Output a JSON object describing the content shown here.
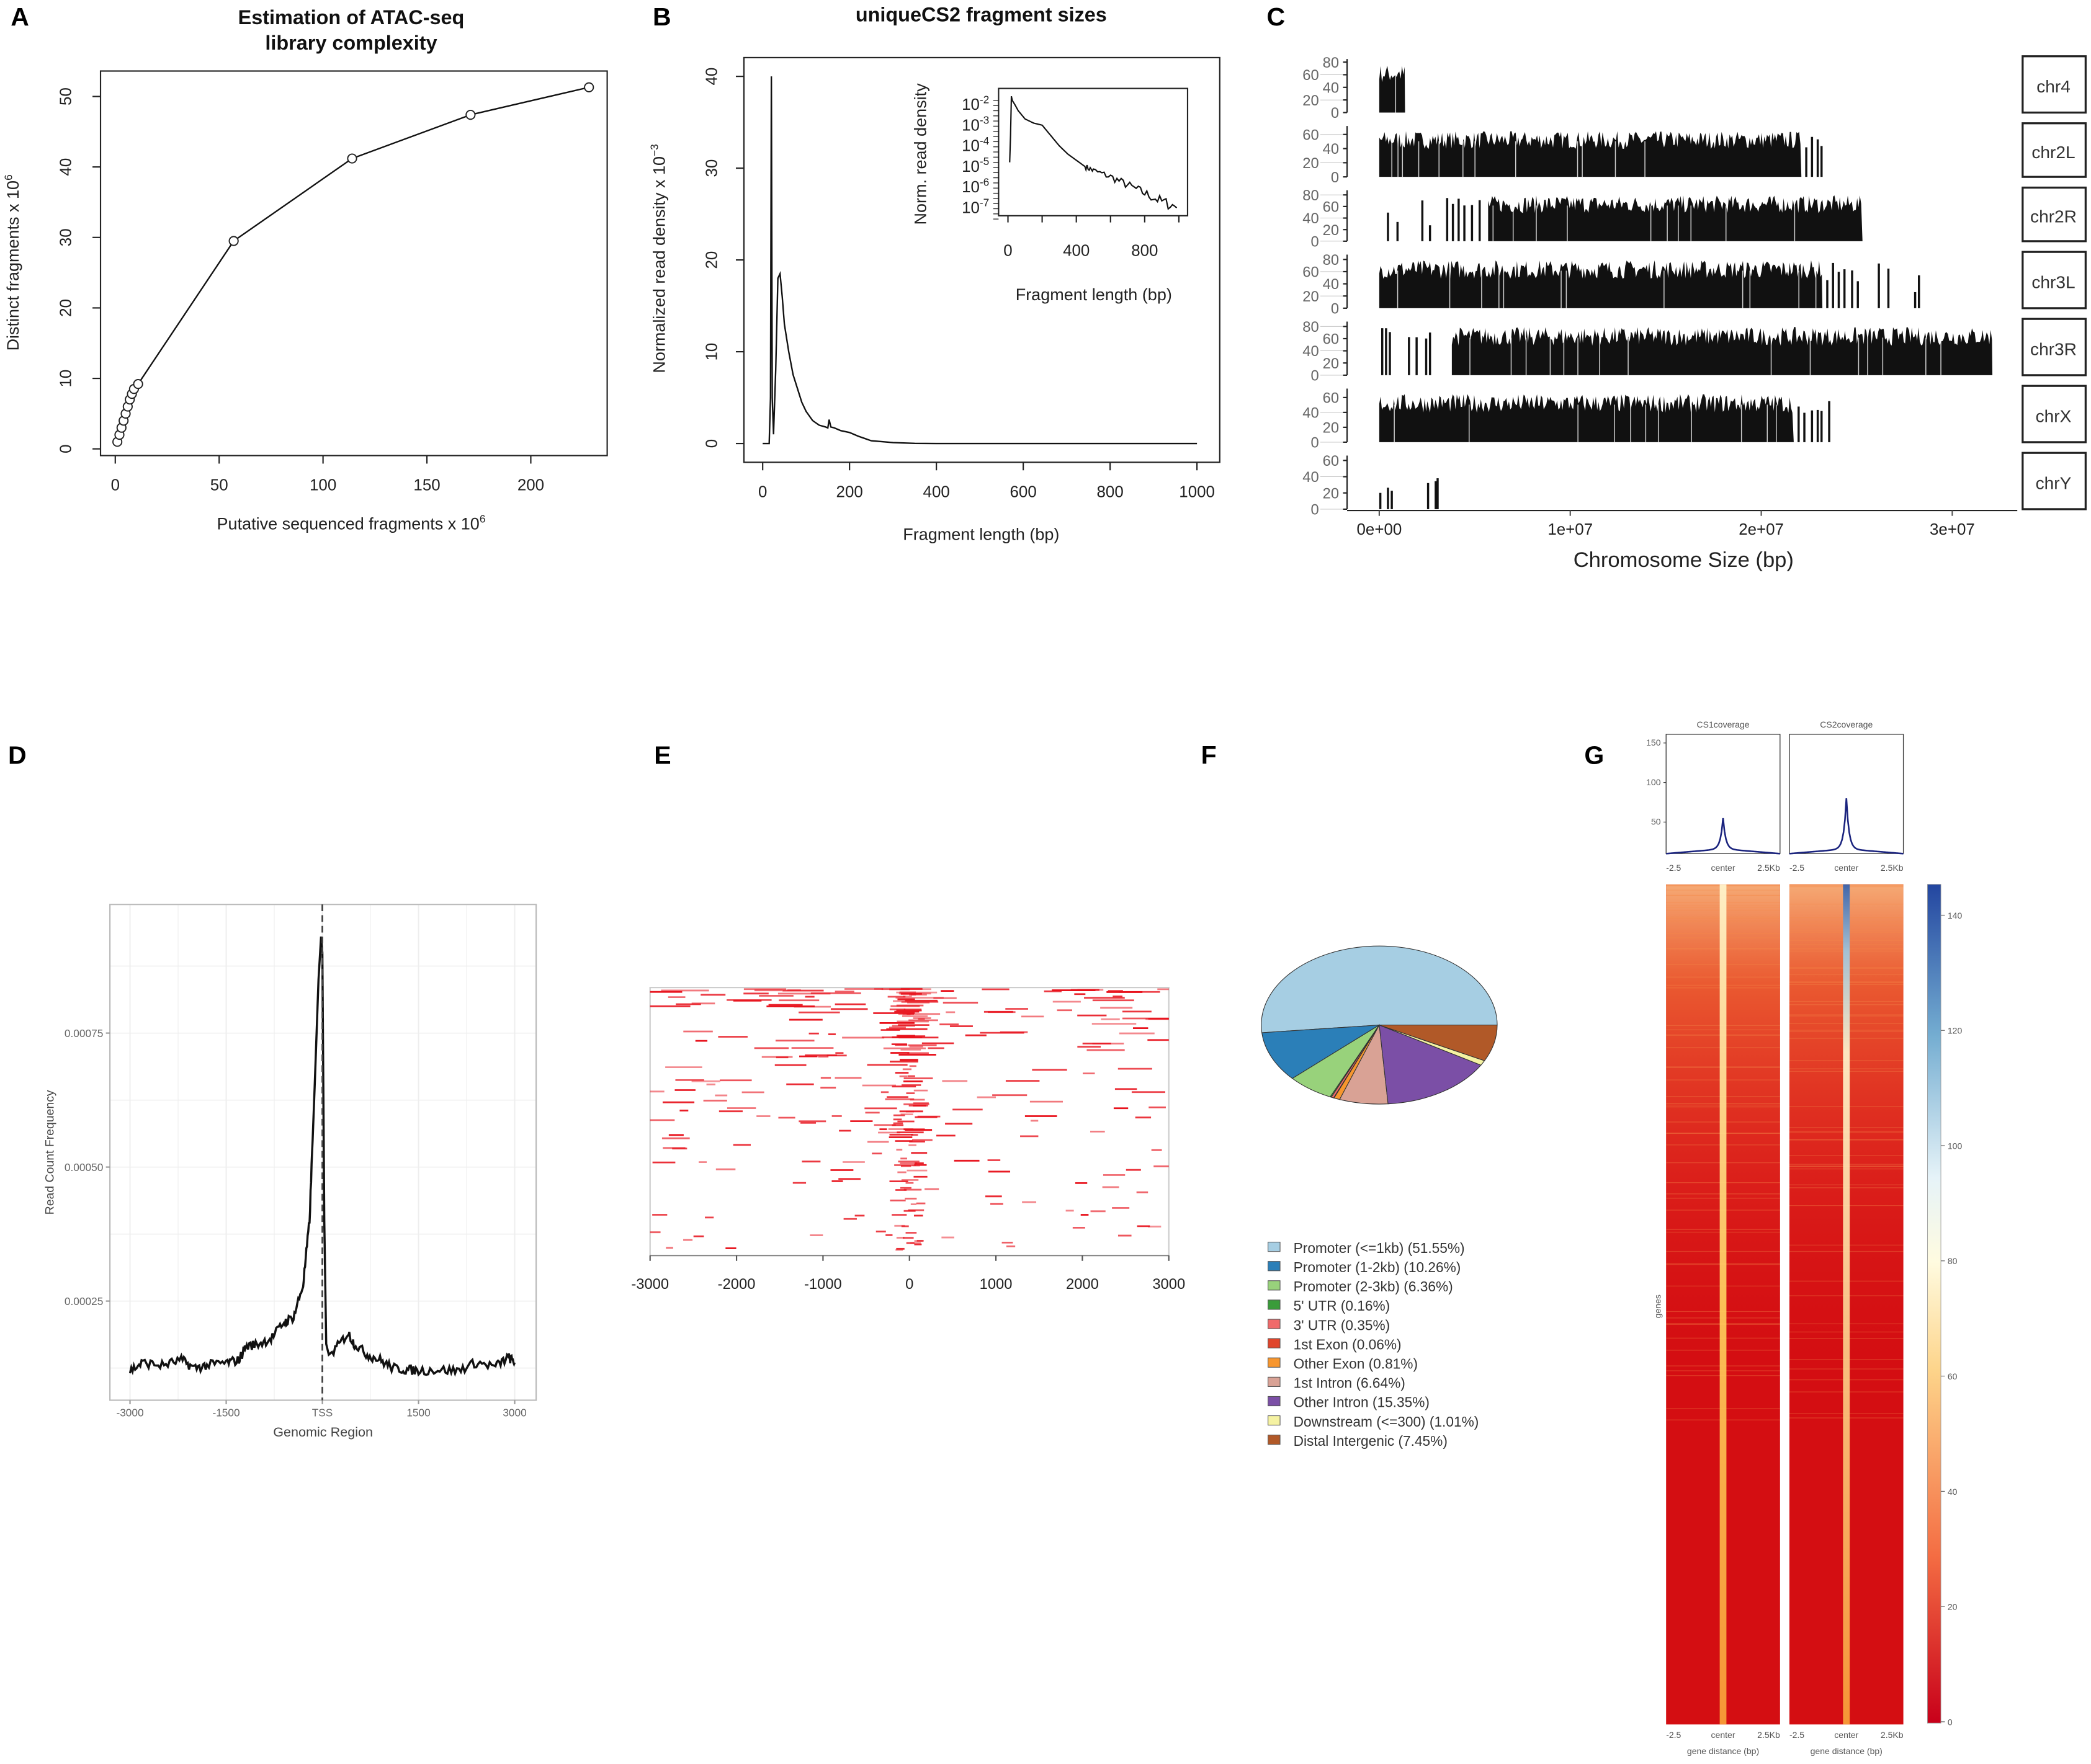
{
  "panel_labels": [
    "A",
    "B",
    "C",
    "D",
    "E",
    "F",
    "G"
  ],
  "chart_data": [
    {
      "type": "line",
      "title_line1": "Estimation of ATAC-seq",
      "title_line2": "library complexity",
      "xlabel": "Putative sequenced fragments x 10",
      "xlabel_exp": "6",
      "ylabel": "Distinct fragments x 10",
      "ylabel_exp": "6",
      "x_ticks": [
        0,
        50,
        100,
        150,
        200
      ],
      "y_ticks": [
        0,
        10,
        20,
        30,
        40,
        50
      ],
      "xlim": [
        0,
        235
      ],
      "ylim": [
        0,
        52
      ],
      "x": [
        1,
        2,
        3,
        4,
        5,
        6,
        7,
        8,
        9,
        11,
        57,
        114,
        171,
        228
      ],
      "y": [
        1,
        2,
        3,
        4,
        5,
        6,
        7,
        7.8,
        8.5,
        9.2,
        29.5,
        41.2,
        47.4,
        51.3
      ],
      "markers": "open-circle"
    },
    {
      "type": "line",
      "title": "uniqueCS2 fragment sizes",
      "xlabel": "Fragment length (bp)",
      "ylabel": "Normalized read density x 10",
      "ylabel_exp": "−3",
      "x_ticks": [
        0,
        200,
        400,
        600,
        800,
        1000
      ],
      "y_ticks": [
        0,
        10,
        20,
        30,
        40
      ],
      "xlim": [
        0,
        1000
      ],
      "ylim": [
        0,
        40
      ],
      "x": [
        0,
        15,
        18,
        20,
        22,
        25,
        30,
        35,
        40,
        45,
        50,
        55,
        60,
        70,
        80,
        90,
        100,
        115,
        130,
        145,
        150,
        153,
        157,
        165,
        180,
        200,
        220,
        250,
        300,
        350,
        400,
        1000
      ],
      "y": [
        0,
        0,
        5,
        40,
        5,
        1,
        8,
        18,
        18.5,
        16,
        13,
        11.5,
        10,
        7.5,
        6,
        4.5,
        3.5,
        2.5,
        2,
        1.8,
        1.7,
        2.6,
        1.8,
        1.7,
        1.4,
        1.2,
        0.8,
        0.3,
        0.1,
        0.02,
        0,
        0
      ],
      "inset": {
        "ylabel": "Norm. read density",
        "xlabel": "Fragment length (bp)",
        "x_ticks": [
          0,
          400,
          800
        ],
        "y_ticks": [
          {
            "base": "10",
            "exp": "-2",
            "value": -2
          },
          {
            "base": "10",
            "exp": "-3",
            "value": -3
          },
          {
            "base": "10",
            "exp": "-4",
            "value": -4
          },
          {
            "base": "10",
            "exp": "-5",
            "value": -5
          },
          {
            "base": "10",
            "exp": "-6",
            "value": -6
          },
          {
            "base": "10",
            "exp": "-7",
            "value": -7
          }
        ],
        "y_scale": "log",
        "x": [
          10,
          15,
          20,
          25,
          40,
          60,
          100,
          150,
          200,
          250,
          300,
          350,
          400,
          450,
          500,
          600,
          700,
          800,
          900,
          1000
        ],
        "log10_y": [
          -4.8,
          -3.5,
          -1.6,
          -1.8,
          -2.0,
          -2.3,
          -2.7,
          -2.9,
          -3.0,
          -3.5,
          -4.0,
          -4.4,
          -4.7,
          -5.0,
          -5.2,
          -5.5,
          -5.9,
          -6.3,
          -6.7,
          -7.0
        ]
      }
    },
    {
      "type": "bar",
      "xlabel": "Chromosome Size (bp)",
      "x_ticks": [
        "0e+00",
        "1e+07",
        "2e+07",
        "3e+07"
      ],
      "x_tick_values": [
        0,
        10,
        20,
        30
      ],
      "x_unit": "Mb",
      "chromosomes": [
        {
          "name": "chr4",
          "y_ticks": [
            0,
            20,
            40,
            60,
            80
          ],
          "ymax": 85,
          "dense": [
            [
              0,
              1.35
            ]
          ],
          "sparse": []
        },
        {
          "name": "chr2L",
          "y_ticks": [
            0,
            20,
            40,
            60
          ],
          "ymax": 72,
          "dense": [
            [
              0,
              22.1
            ]
          ],
          "sparse": [
            22.3,
            22.6,
            22.9,
            23.1
          ]
        },
        {
          "name": "chr2R",
          "y_ticks": [
            0,
            20,
            40,
            60,
            80
          ],
          "ymax": 88,
          "dense": [
            [
              5.7,
              25.3
            ]
          ],
          "sparse": [
            0.4,
            0.9,
            2.2,
            2.6,
            3.5,
            3.8,
            4.1,
            4.4,
            4.8,
            5.2
          ]
        },
        {
          "name": "chr3L",
          "y_ticks": [
            0,
            20,
            40,
            60,
            80
          ],
          "ymax": 88,
          "dense": [
            [
              0,
              23.2
            ]
          ],
          "sparse": [
            23.4,
            23.7,
            24.0,
            24.3,
            24.7,
            25.0,
            26.1,
            26.6,
            28.0,
            28.2
          ]
        },
        {
          "name": "chr3R",
          "y_ticks": [
            0,
            20,
            40,
            60,
            80
          ],
          "ymax": 88,
          "dense": [
            [
              3.8,
              32.1
            ]
          ],
          "sparse": [
            0.1,
            0.3,
            0.5,
            1.5,
            1.9,
            2.4,
            2.6
          ]
        },
        {
          "name": "chrX",
          "y_ticks": [
            0,
            20,
            40,
            60
          ],
          "ymax": 72,
          "dense": [
            [
              0,
              21.7
            ]
          ],
          "sparse": [
            21.9,
            22.2,
            22.6,
            22.9,
            23.1,
            23.5
          ]
        },
        {
          "name": "chrY",
          "y_ticks": [
            0,
            20,
            40,
            60
          ],
          "ymax": 66,
          "dense": [],
          "sparse": [
            0,
            0.4,
            0.6,
            2.5,
            2.9,
            3.0
          ]
        }
      ]
    },
    {
      "type": "line",
      "xlabel": "Genomic Region",
      "ylabel": "Read Count Frequency",
      "x_ticks": [
        "-3000",
        "-1500",
        "TSS",
        "1500",
        "3000"
      ],
      "x_tick_values": [
        -3000,
        -1500,
        0,
        1500,
        3000
      ],
      "y_ticks": [
        "0.00025",
        "0.00050",
        "0.00075"
      ],
      "y_tick_values": [
        0.00025,
        0.0005,
        0.00075
      ],
      "xlim": [
        -3000,
        3000
      ],
      "grid": true,
      "x": [
        -3000,
        -2800,
        -2500,
        -2200,
        -2000,
        -1800,
        -1500,
        -1300,
        -1200,
        -1000,
        -800,
        -600,
        -450,
        -300,
        -200,
        -120,
        -60,
        -20,
        0,
        30,
        60,
        100,
        200,
        400,
        500,
        700,
        900,
        1100,
        1300,
        1500,
        1800,
        2100,
        2400,
        2700,
        2900,
        3000
      ],
      "y": [
        0.00012,
        0.000135,
        0.00013,
        0.00014,
        0.000125,
        0.00013,
        0.000135,
        0.00014,
        0.000165,
        0.00017,
        0.00018,
        0.00021,
        0.00022,
        0.00028,
        0.0004,
        0.00065,
        0.00085,
        0.00093,
        0.0009,
        0.0004,
        0.00017,
        0.00015,
        0.00016,
        0.00019,
        0.00017,
        0.00015,
        0.00014,
        0.000125,
        0.000122,
        0.00012,
        0.000122,
        0.00012,
        0.000135,
        0.000128,
        0.000145,
        0.000135
      ],
      "marker_line": {
        "x": 0,
        "style": "dashed"
      }
    },
    {
      "type": "heatmap",
      "x_ticks": [
        "-3000",
        "-2000",
        "-1000",
        "0",
        "1000",
        "2000",
        "3000"
      ],
      "x_tick_values": [
        -3000,
        -2000,
        -1000,
        0,
        1000,
        2000,
        3000
      ],
      "xlim": [
        -3000,
        3000
      ],
      "color": "#e8111b"
    },
    {
      "type": "pie",
      "slices": [
        {
          "label": "Promoter (<=1kb) (51.55%)",
          "value": 51.55,
          "color": "#a6cee3"
        },
        {
          "label": "Promoter (1-2kb) (10.26%)",
          "value": 10.26,
          "color": "#2b7fb8"
        },
        {
          "label": "Promoter (2-3kb) (6.36%)",
          "value": 6.36,
          "color": "#98d27b"
        },
        {
          "label": "5' UTR (0.16%)",
          "value": 0.16,
          "color": "#3a9c3a"
        },
        {
          "label": "3' UTR (0.35%)",
          "value": 0.35,
          "color": "#f06a6a"
        },
        {
          "label": "1st Exon (0.06%)",
          "value": 0.06,
          "color": "#e0452b"
        },
        {
          "label": "Other Exon (0.81%)",
          "value": 0.81,
          "color": "#f7962e"
        },
        {
          "label": "1st Intron (6.64%)",
          "value": 6.64,
          "color": "#d9a295"
        },
        {
          "label": "Other Intron (15.35%)",
          "value": 15.35,
          "color": "#7b4fa6"
        },
        {
          "label": "Downstream (<=300) (1.01%)",
          "value": 1.01,
          "color": "#f5f2a2"
        },
        {
          "label": "Distal Intergenic (7.45%)",
          "value": 7.45,
          "color": "#b15928"
        }
      ],
      "legend": "bottom"
    },
    {
      "type": "heatmap",
      "samples": [
        {
          "name": "CS1coverage",
          "profile_peak": 55,
          "profile_base": 10
        },
        {
          "name": "CS2coverage",
          "profile_peak": 80,
          "profile_base": 10
        }
      ],
      "profile_y_ticks": [
        50,
        100,
        150
      ],
      "x_ticks": [
        "-2.5",
        "center",
        "2.5Kb"
      ],
      "xlabel": "gene distance (bp)",
      "ylabel": "genes",
      "colorbar_ticks": [
        0,
        20,
        40,
        60,
        80,
        100,
        120,
        140
      ],
      "colorbar_range": [
        0,
        145
      ],
      "colormap": [
        "#c8001a",
        "#f46d43",
        "#fee090",
        "#ffffff",
        "#74add1",
        "#2346a0"
      ],
      "profile_color": "#1a237e"
    }
  ]
}
